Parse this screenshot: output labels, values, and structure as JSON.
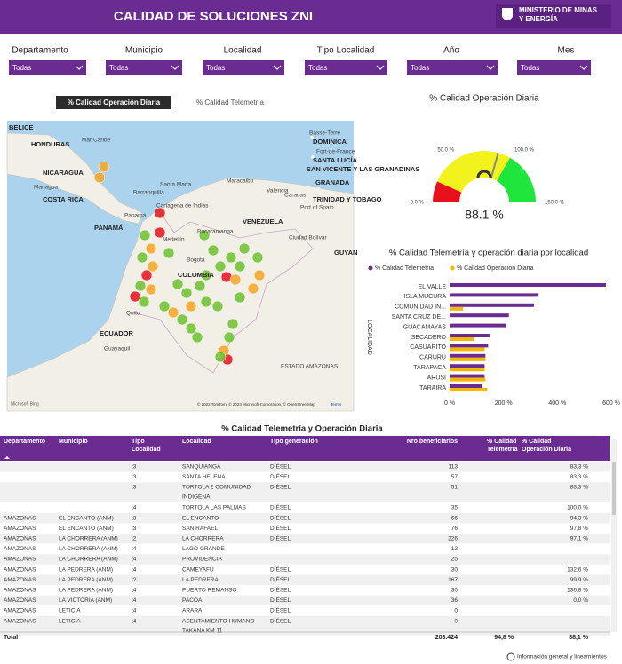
{
  "header": {
    "title": "CALIDAD DE SOLUCIONES ZNI",
    "logo_lines": [
      "MINISTERIO DE MINAS",
      "Y ENERGÍA"
    ]
  },
  "filters": [
    {
      "label": "Departamento",
      "value": "Todas"
    },
    {
      "label": "Municipio",
      "value": "Todas"
    },
    {
      "label": "Localidad",
      "value": "Todas"
    },
    {
      "label": "Tipo Localidad",
      "value": "Todas"
    },
    {
      "label": "Año",
      "value": "Todas"
    },
    {
      "label": "Mes",
      "value": "Todas"
    }
  ],
  "tabs": [
    "% Calidad Operación Diaria",
    "% Calidad Telemetría"
  ],
  "active_tab": 0,
  "map": {
    "labels": [
      "BELICE",
      "HONDURAS",
      "Mar Caribe",
      "NICARAGUA",
      "Managua",
      "COSTA RICA",
      "PANAMÁ",
      "Panamá",
      "Barranquilla",
      "Santa Marta",
      "Cartagena de Indias",
      "Maracaibo",
      "Valencia",
      "Caracas",
      "Medellín",
      "Bucaramanga",
      "VENEZUELA",
      "Bogotá",
      "COLOMBIA",
      "Quito",
      "ECUADOR",
      "Guayaquil",
      "Ciudad Bolívar",
      "GUYAN",
      "ESTADO AMAZONAS",
      "Basse-Terre",
      "DOMINICA",
      "Fort-de-France",
      "SANTA LUCÍA",
      "SAN VICENTE Y LAS GRANADINAS",
      "GRANADA",
      "TRINIDAD Y TOBAGO",
      "Port of Spain"
    ],
    "attribution": "© 2022 TomTom, © 2023 Microsoft Corporation, © OpenStreetMap",
    "terms": "Terms",
    "provider": "Microsoft Bing"
  },
  "gauge": {
    "title": "% Calidad Operación Diaria",
    "value": 88.1,
    "value_label": "88.1 %",
    "min": 0,
    "max": 150,
    "ticks": [
      {
        "value": 0,
        "label": "0.0 %"
      },
      {
        "value": 50,
        "label": "50.0 %"
      },
      {
        "value": 100,
        "label": "100.0 %"
      },
      {
        "value": 150,
        "label": "150.0 %"
      }
    ],
    "bands": [
      {
        "to": 20,
        "color": "#e8101c"
      },
      {
        "to": 100,
        "color": "#f2f21c"
      },
      {
        "to": 150,
        "color": "#1ee63c"
      }
    ]
  },
  "bar_chart": {
    "type": "bar",
    "orientation": "horizontal",
    "title": "% Calidad Telemetría y operación diaria por localidad",
    "y_label": "LOCALIDAD",
    "categories": [
      "EL VALLE",
      "ISLA MUCURA",
      "COMUNIDAD IN...",
      "SANTA CRUZ DE...",
      "GUACAMAYAS",
      "SECADERO",
      "CASUARITO",
      "CARURU",
      "TARAPACA",
      "ARUSI",
      "TARAIRA"
    ],
    "series": [
      {
        "name": "% Calidad Telemetria",
        "color": "#6b2c91",
        "values": [
          580,
          330,
          313,
          220,
          210,
          150,
          143,
          133,
          130,
          130,
          120
        ]
      },
      {
        "name": "% Calidad Operacion Diaria",
        "color": "#f5b700",
        "values": [
          null,
          null,
          50,
          null,
          null,
          90,
          130,
          133,
          130,
          133,
          140
        ]
      }
    ],
    "xlim": [
      0,
      600
    ],
    "xticks": [
      {
        "value": 0,
        "label": "0 %"
      },
      {
        "value": 200,
        "label": "200 %"
      },
      {
        "value": 400,
        "label": "400 %"
      },
      {
        "value": 600,
        "label": "600 %"
      }
    ]
  },
  "table": {
    "title": "% Calidad Telemetría y Operación Diaria",
    "columns": [
      [
        "Departamento"
      ],
      [
        "Municipio"
      ],
      [
        "Tipo",
        "Localidad"
      ],
      [
        "Localidad"
      ],
      [
        "Tipo generación"
      ],
      [
        "Nro beneficiarios"
      ],
      [
        "% Calidad",
        "Telemetría"
      ],
      [
        "% Calidad",
        "Operación Diaria"
      ]
    ],
    "rows": [
      [
        null,
        null,
        "t3",
        "SANQUIANGA",
        "DIÉSEL",
        "113",
        null,
        "83,3 %"
      ],
      [
        null,
        null,
        "t3",
        "SANTA HELENA",
        "DIÉSEL",
        "57",
        null,
        "83,3 %"
      ],
      [
        null,
        null,
        "t3",
        [
          "TORTOLA 2 COMUNIDAD",
          "INDIGENA"
        ],
        "DIÉSEL",
        "51",
        null,
        "83,3 %"
      ],
      [
        null,
        null,
        "t4",
        "TORTOLA LAS PALMAS",
        "DIÉSEL",
        "35",
        null,
        "100,0 %"
      ],
      [
        "AMAZONAS",
        "EL ENCANTO (ANM)",
        "t3",
        "EL ENCANTO",
        "DIÉSEL",
        "66",
        null,
        "94,3 %"
      ],
      [
        "AMAZONAS",
        "EL ENCANTO (ANM)",
        "t3",
        "SAN RAFAEL",
        "DIÉSEL",
        "76",
        null,
        "97,8 %"
      ],
      [
        "AMAZONAS",
        "LA CHORRERA (ANM)",
        "t2",
        "LA CHORRERA",
        "DIÉSEL",
        "226",
        null,
        "97,1 %"
      ],
      [
        "AMAZONAS",
        "LA CHORRERA (ANM)",
        "t4",
        "LAGO GRANDE",
        null,
        "12",
        null,
        null
      ],
      [
        "AMAZONAS",
        "LA CHORRERA (ANM)",
        "t4",
        "PROVIDENCIA",
        null,
        "25",
        null,
        null
      ],
      [
        "AMAZONAS",
        "LA PEDRERA (ANM)",
        "t4",
        "CAMEYAFU",
        "DIÉSEL",
        "30",
        null,
        "132,6 %"
      ],
      [
        "AMAZONAS",
        "LA PEDRERA (ANM)",
        "t2",
        "LA PEDRERA",
        "DIÉSEL",
        "167",
        null,
        "99,9 %"
      ],
      [
        "AMAZONAS",
        "LA PEDRERA (ANM)",
        "t4",
        "PUERTO REMANSO",
        "DIÉSEL",
        "30",
        null,
        "136,8 %"
      ],
      [
        "AMAZONAS",
        "LA VICTORIA (ANM)",
        "t4",
        "PACOA",
        "DIÉSEL",
        "36",
        null,
        "0,0 %"
      ],
      [
        "AMAZONAS",
        "LETICIA",
        "t4",
        "ARARA",
        "DIÉSEL",
        "0",
        null,
        null
      ],
      [
        "AMAZONAS",
        "LETICIA",
        "t4",
        [
          "ASENTAMIENTO HUMANO",
          "TAKANA KM 11"
        ],
        "DIÉSEL",
        "0",
        null,
        null
      ]
    ],
    "total": [
      "Total",
      null,
      null,
      null,
      null,
      "203.424",
      "94,8 %",
      "88,1 %"
    ]
  },
  "footer": "Información general y lineamientos"
}
